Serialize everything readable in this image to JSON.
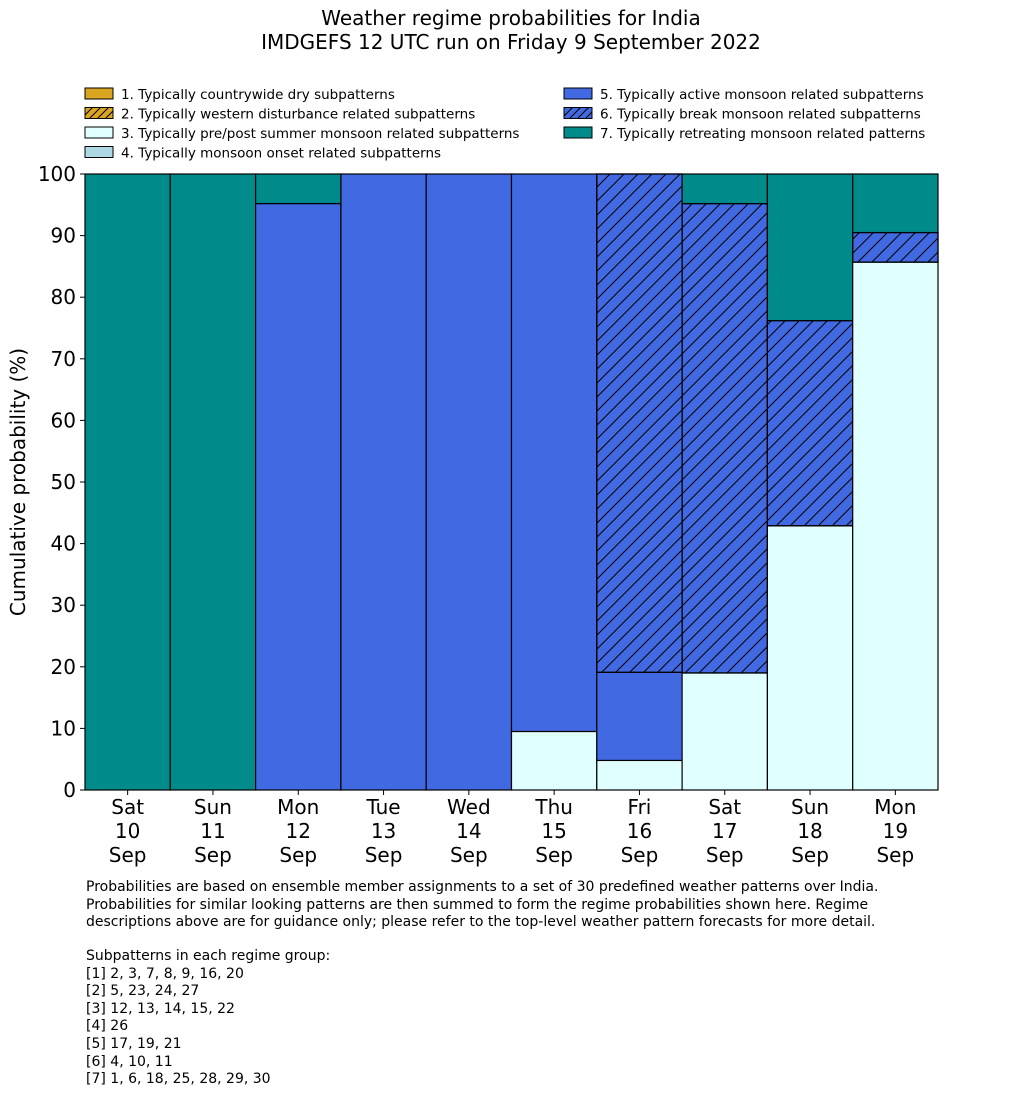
{
  "title_lines": [
    "Weather regime probabilities for India",
    "IMDGEFS 12 UTC run on Friday 9 September 2022"
  ],
  "chart_data": {
    "type": "bar",
    "stacked": true,
    "ylabel": "Cumulative probability (%)",
    "xlabel": "",
    "ylim": [
      0,
      100
    ],
    "yticks": [
      0,
      10,
      20,
      30,
      40,
      50,
      60,
      70,
      80,
      90,
      100
    ],
    "grid": false,
    "legend_position": "top",
    "categories": [
      [
        "Sat",
        "10",
        "Sep"
      ],
      [
        "Sun",
        "11",
        "Sep"
      ],
      [
        "Mon",
        "12",
        "Sep"
      ],
      [
        "Tue",
        "13",
        "Sep"
      ],
      [
        "Wed",
        "14",
        "Sep"
      ],
      [
        "Thu",
        "15",
        "Sep"
      ],
      [
        "Fri",
        "16",
        "Sep"
      ],
      [
        "Sat",
        "17",
        "Sep"
      ],
      [
        "Sun",
        "18",
        "Sep"
      ],
      [
        "Mon",
        "19",
        "Sep"
      ]
    ],
    "series": [
      {
        "name": "1. Typically countrywide dry subpatterns",
        "color": "#daa520",
        "hatch": false,
        "values": [
          0,
          0,
          0,
          0,
          0,
          0,
          0,
          0,
          0,
          0
        ]
      },
      {
        "name": "2. Typically western disturbance related subpatterns",
        "color": "#daa520",
        "hatch": true,
        "values": [
          0,
          0,
          0,
          0,
          0,
          0,
          0,
          0,
          0,
          0
        ]
      },
      {
        "name": "3. Typically pre/post summer monsoon related subpatterns",
        "color": "#e0ffff",
        "hatch": false,
        "values": [
          0,
          0,
          0,
          0,
          0,
          9.5,
          4.8,
          19.0,
          42.9,
          85.7
        ]
      },
      {
        "name": "4. Typically monsoon onset related subpatterns",
        "color": "#add8e6",
        "hatch": false,
        "values": [
          0,
          0,
          0,
          0,
          0,
          0,
          0,
          0,
          0,
          0
        ]
      },
      {
        "name": "5. Typically active monsoon related subpatterns",
        "color": "#4169e1",
        "hatch": false,
        "values": [
          0,
          0,
          95.2,
          100,
          100,
          90.5,
          14.3,
          0,
          0,
          0
        ]
      },
      {
        "name": "6. Typically break monsoon related subpatterns",
        "color": "#4169e1",
        "hatch": true,
        "values": [
          0,
          0,
          0,
          0,
          0,
          0,
          80.9,
          76.2,
          33.3,
          4.8
        ]
      },
      {
        "name": "7. Typically retreating monsoon related patterns",
        "color": "#008b8b",
        "hatch": false,
        "values": [
          100,
          100,
          4.8,
          0,
          0,
          0,
          0,
          4.8,
          23.8,
          9.5
        ]
      }
    ]
  },
  "footnote_lines": [
    "Probabilities are based on ensemble member assignments to a set of 30 predefined weather patterns over India.",
    "Probabilities for similar looking patterns are then summed to form the regime probabilities shown here. Regime",
    "descriptions above are for guidance only; please refer to the top-level weather pattern forecasts for more detail."
  ],
  "subpatterns": {
    "heading": "Subpatterns in each regime group:",
    "groups": [
      "[1] 2, 3, 7, 8, 9, 16, 20",
      "[2] 5, 23, 24, 27",
      "[3] 12, 13, 14, 15, 22",
      "[4] 26",
      "[5] 17, 19, 21",
      "[6] 4, 10, 11",
      "[7] 1, 6, 18, 25, 28, 29, 30"
    ]
  }
}
